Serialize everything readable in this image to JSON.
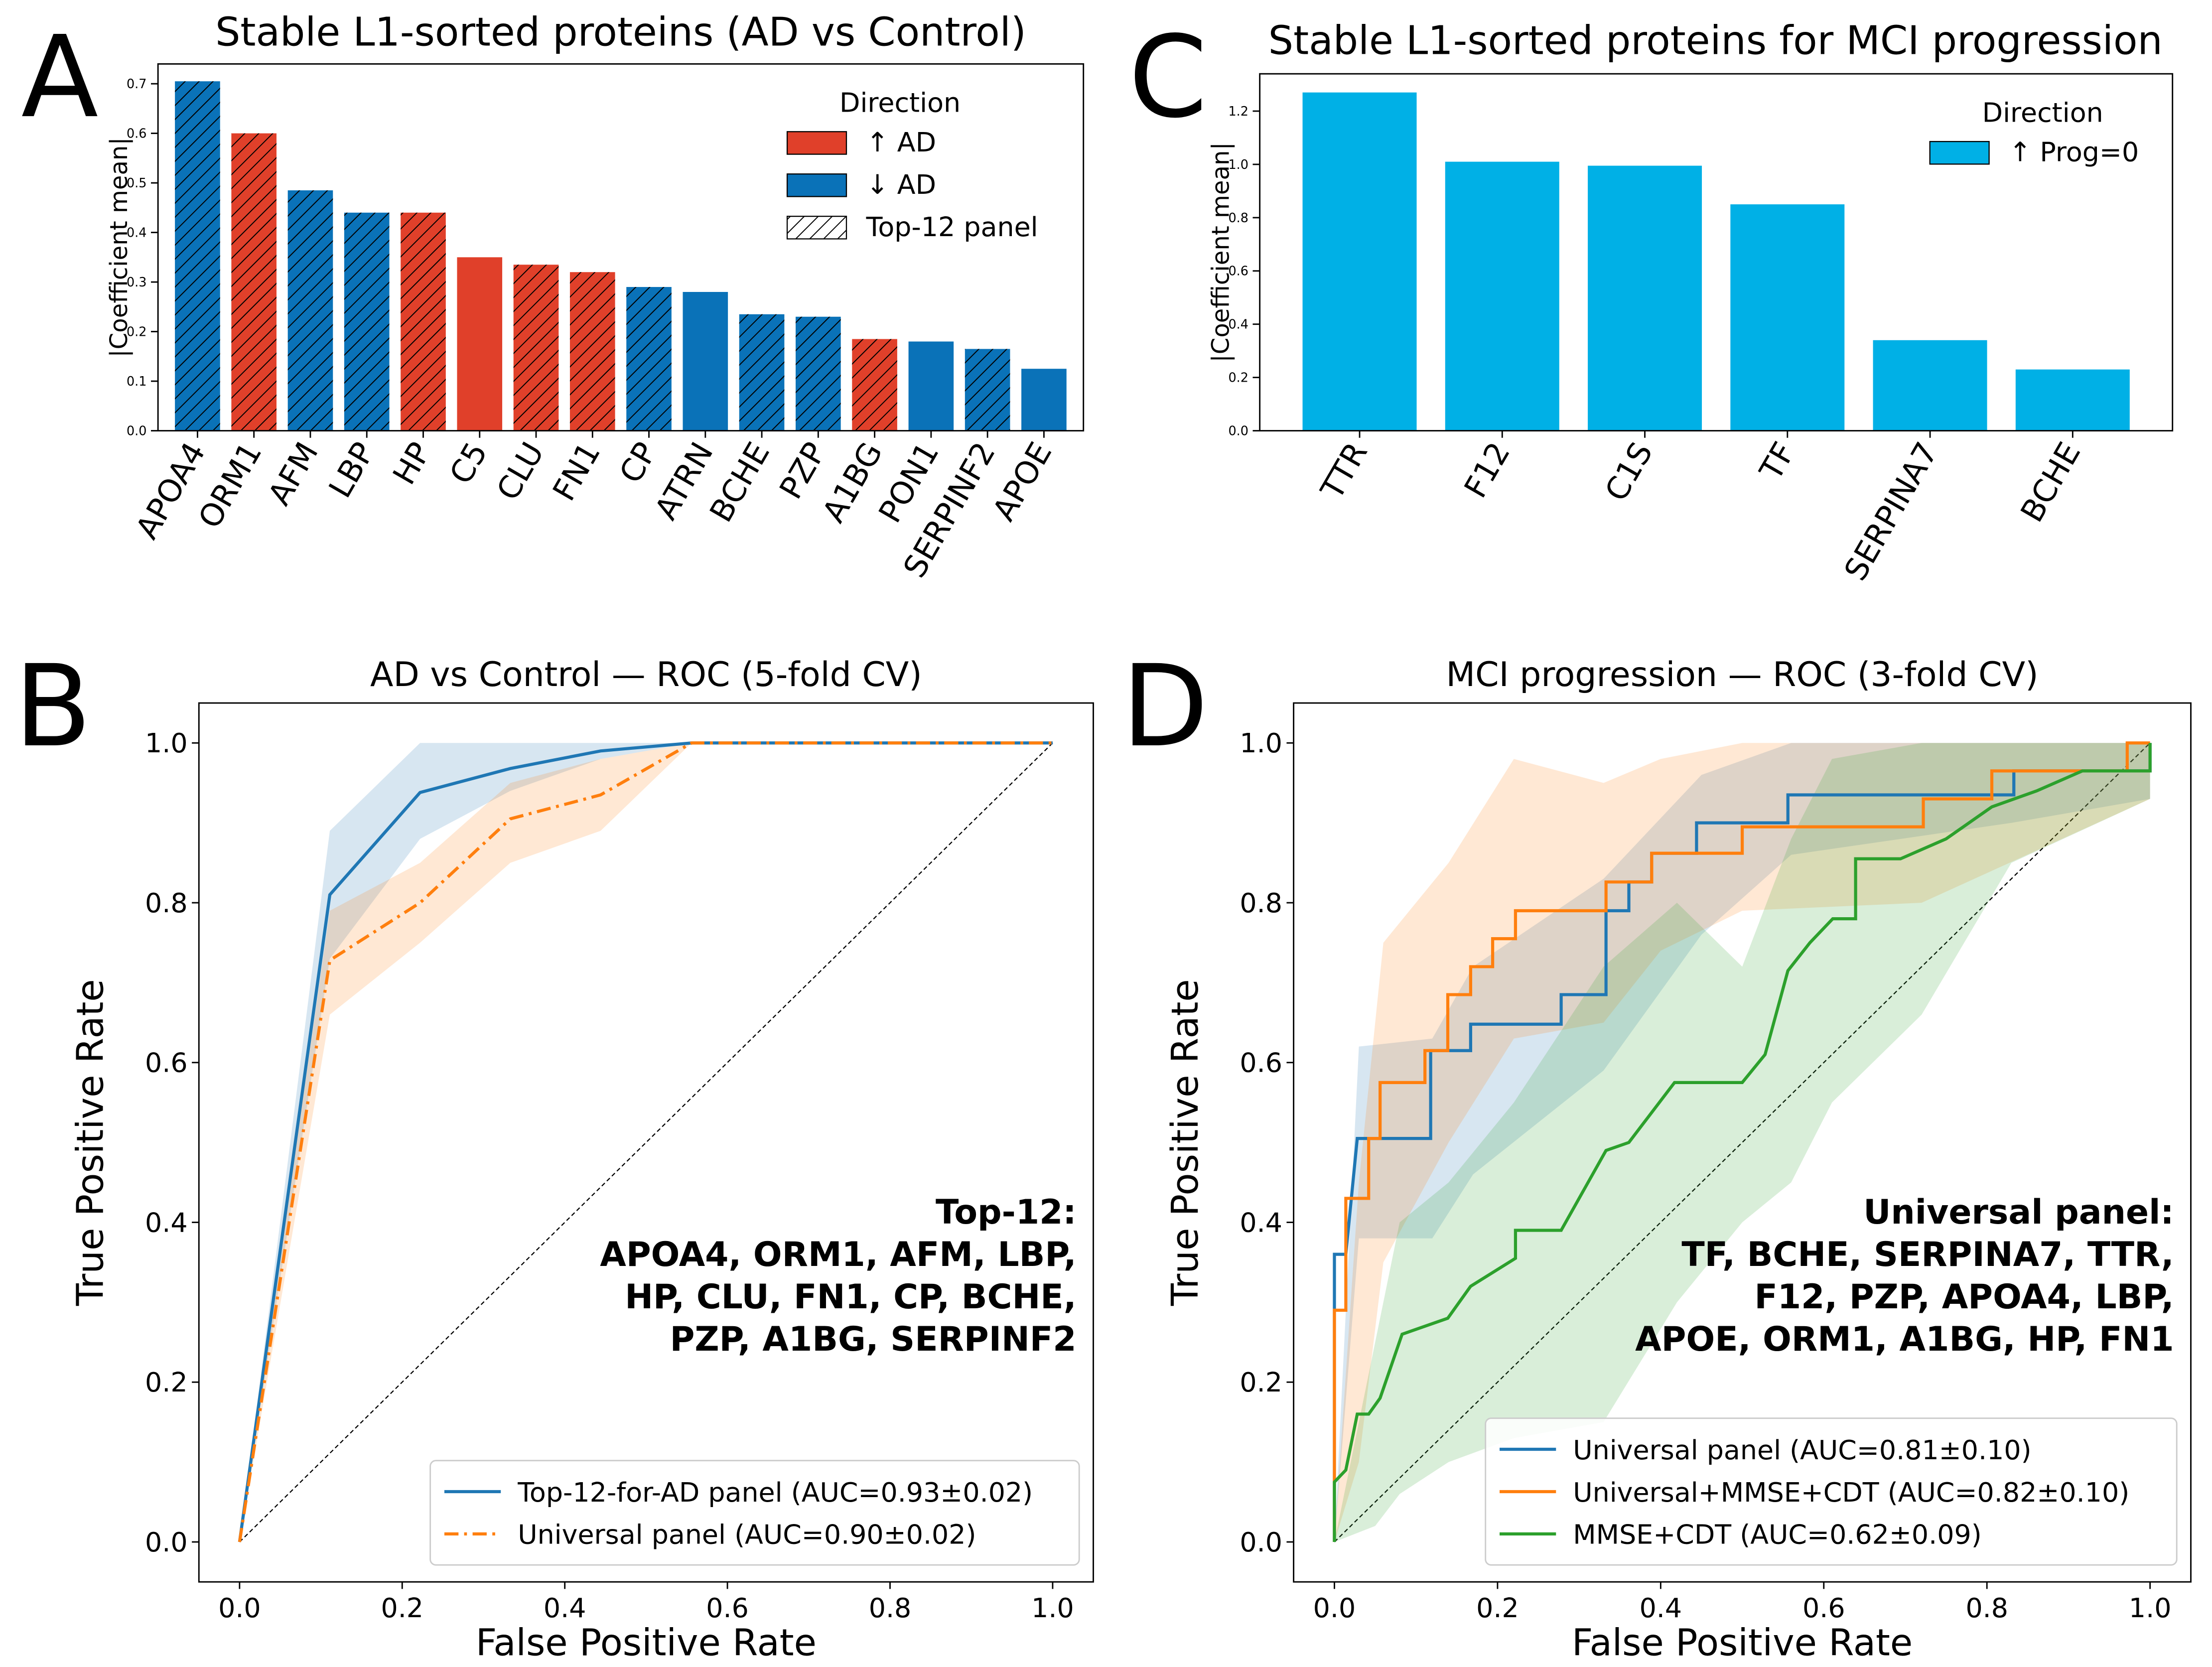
{
  "chart_data": [
    {
      "type": "bar",
      "label": "A",
      "title": "Stable L1-sorted proteins (AD vs Control)",
      "ylabel": "|Coefficient mean|",
      "categories": [
        "APOA4",
        "ORM1",
        "AFM",
        "LBP",
        "HP",
        "C5",
        "CLU",
        "FN1",
        "CP",
        "ATRN",
        "BCHE",
        "PZP",
        "A1BG",
        "PON1",
        "SERPINF2",
        "APOE"
      ],
      "values": [
        0.705,
        0.6,
        0.485,
        0.44,
        0.44,
        0.35,
        0.335,
        0.32,
        0.29,
        0.28,
        0.235,
        0.23,
        0.185,
        0.18,
        0.165,
        0.125
      ],
      "colors": [
        "#0a72b8",
        "#e0402a",
        "#0a72b8",
        "#0a72b8",
        "#e0402a",
        "#e0402a",
        "#e0402a",
        "#e0402a",
        "#0a72b8",
        "#0a72b8",
        "#0a72b8",
        "#0a72b8",
        "#e0402a",
        "#0a72b8",
        "#0a72b8",
        "#0a72b8"
      ],
      "hatch": [
        true,
        true,
        true,
        true,
        true,
        false,
        true,
        true,
        true,
        false,
        true,
        true,
        true,
        false,
        true,
        false
      ],
      "ylim": [
        0,
        0.74
      ],
      "yticks": [
        {
          "value": 0,
          "label": "0.0"
        },
        {
          "value": 0.1,
          "label": "0.1"
        },
        {
          "value": 0.2,
          "label": "0.2"
        },
        {
          "value": 0.3,
          "label": "0.3"
        },
        {
          "value": 0.4,
          "label": "0.4"
        },
        {
          "value": 0.5,
          "label": "0.5"
        },
        {
          "value": 0.6,
          "label": "0.6"
        },
        {
          "value": 0.7,
          "label": "0.7"
        }
      ],
      "legend": {
        "title": "Direction",
        "loc": "upper right",
        "entries": [
          {
            "label": "↑ AD",
            "color": "#e0402a"
          },
          {
            "label": "↓ AD",
            "color": "#0a72b8"
          },
          {
            "label": "Top-12 panel",
            "hatch": true
          }
        ]
      }
    },
    {
      "type": "roc",
      "label": "B",
      "title": "AD vs Control — ROC (5-fold CV)",
      "xlabel": "False Positive Rate",
      "ylabel": "True Positive Rate",
      "xlim": [
        -0.05,
        1.05
      ],
      "ylim": [
        -0.05,
        1.05
      ],
      "xticks": [
        {
          "value": 0,
          "label": "0.0"
        },
        {
          "value": 0.2,
          "label": "0.2"
        },
        {
          "value": 0.4,
          "label": "0.4"
        },
        {
          "value": 0.6,
          "label": "0.6"
        },
        {
          "value": 0.8,
          "label": "0.8"
        },
        {
          "value": 1,
          "label": "1.0"
        }
      ],
      "yticks": [
        {
          "value": 0,
          "label": "0.0"
        },
        {
          "value": 0.2,
          "label": "0.2"
        },
        {
          "value": 0.4,
          "label": "0.4"
        },
        {
          "value": 0.6,
          "label": "0.6"
        },
        {
          "value": 0.8,
          "label": "0.8"
        },
        {
          "value": 1,
          "label": "1.0"
        }
      ],
      "legend": {
        "loc": "lower right"
      },
      "annotation": [
        "Top-12:",
        "APOA4, ORM1, AFM, LBP,",
        "HP, CLU, FN1, CP, BCHE,",
        "PZP, A1BG, SERPINF2"
      ],
      "series": [
        {
          "name": "Top-12-for-AD panel (AUC=0.93±0.02)",
          "color": "#1f77b4",
          "dash": "solid",
          "x": [
            0,
            0.111,
            0.222,
            0.333,
            0.444,
            0.556,
            1
          ],
          "values": [
            0,
            0.81,
            0.938,
            0.968,
            0.99,
            1,
            1
          ],
          "band": {
            "x": [
              0,
              0.111,
              0.222,
              0.333,
              0.444,
              0.556,
              1
            ],
            "lower": [
              0,
              0.73,
              0.88,
              0.94,
              0.98,
              1,
              1
            ],
            "upper": [
              0,
              0.89,
              1,
              1,
              1,
              1,
              1
            ]
          }
        },
        {
          "name": "Universal panel (AUC=0.90±0.02)",
          "color": "#ff7f0e",
          "dash": "dashdot",
          "x": [
            0,
            0.111,
            0.222,
            0.333,
            0.444,
            0.556,
            1
          ],
          "values": [
            0,
            0.728,
            0.8,
            0.905,
            0.935,
            1,
            1
          ],
          "band": {
            "x": [
              0,
              0.111,
              0.222,
              0.333,
              0.444,
              0.556,
              1
            ],
            "lower": [
              0,
              0.66,
              0.75,
              0.85,
              0.89,
              1,
              1
            ],
            "upper": [
              0,
              0.79,
              0.85,
              0.95,
              0.98,
              1,
              1
            ]
          }
        }
      ]
    },
    {
      "type": "bar",
      "label": "C",
      "title": "Stable L1-sorted proteins for MCI progression",
      "ylabel": "|Coefficient mean|",
      "categories": [
        "TTR",
        "F12",
        "C1S",
        "TF",
        "SERPINA7",
        "BCHE"
      ],
      "values": [
        1.27,
        1.01,
        0.995,
        0.85,
        0.34,
        0.23
      ],
      "colors": [
        "#00b0e6",
        "#00b0e6",
        "#00b0e6",
        "#00b0e6",
        "#00b0e6",
        "#00b0e6"
      ],
      "hatch": [
        false,
        false,
        false,
        false,
        false,
        false
      ],
      "ylim": [
        0,
        1.34
      ],
      "yticks": [
        {
          "value": 0,
          "label": "0.0"
        },
        {
          "value": 0.2,
          "label": "0.2"
        },
        {
          "value": 0.4,
          "label": "0.4"
        },
        {
          "value": 0.6,
          "label": "0.6"
        },
        {
          "value": 0.8,
          "label": "0.8"
        },
        {
          "value": 1,
          "label": "1.0"
        },
        {
          "value": 1.2,
          "label": "1.2"
        }
      ],
      "legend": {
        "title": "Direction",
        "loc": "upper right",
        "entries": [
          {
            "label": "↑ Prog=0",
            "color": "#00b0e6"
          }
        ]
      }
    },
    {
      "type": "roc",
      "label": "D",
      "title": "MCI progression — ROC (3-fold CV)",
      "xlabel": "False Positive Rate",
      "ylabel": "True Positive Rate",
      "xlim": [
        -0.05,
        1.05
      ],
      "ylim": [
        -0.05,
        1.05
      ],
      "xticks": [
        {
          "value": 0,
          "label": "0.0"
        },
        {
          "value": 0.2,
          "label": "0.2"
        },
        {
          "value": 0.4,
          "label": "0.4"
        },
        {
          "value": 0.6,
          "label": "0.6"
        },
        {
          "value": 0.8,
          "label": "0.8"
        },
        {
          "value": 1,
          "label": "1.0"
        }
      ],
      "yticks": [
        {
          "value": 0,
          "label": "0.0"
        },
        {
          "value": 0.2,
          "label": "0.2"
        },
        {
          "value": 0.4,
          "label": "0.4"
        },
        {
          "value": 0.6,
          "label": "0.6"
        },
        {
          "value": 0.8,
          "label": "0.8"
        },
        {
          "value": 1,
          "label": "1.0"
        }
      ],
      "legend": {
        "loc": "lower right"
      },
      "annotation": [
        "Universal panel:",
        "TF, BCHE, SERPINA7, TTR,",
        "F12, PZP, APOA4, LBP,",
        "APOE, ORM1, A1BG, HP, FN1"
      ],
      "series": [
        {
          "name": "Universal panel (AUC=0.81±0.10)",
          "color": "#1f77b4",
          "dash": "solid",
          "x": [
            0,
            0,
            0.014,
            0.028,
            0.118,
            0.118,
            0.167,
            0.167,
            0.278,
            0.278,
            0.333,
            0.333,
            0.361,
            0.361,
            0.389,
            0.389,
            0.444,
            0.444,
            0.556,
            0.556,
            0.833,
            0.833,
            1,
            1
          ],
          "values": [
            0,
            0.36,
            0.36,
            0.505,
            0.505,
            0.615,
            0.615,
            0.648,
            0.648,
            0.685,
            0.685,
            0.79,
            0.79,
            0.826,
            0.826,
            0.862,
            0.862,
            0.9,
            0.9,
            0.935,
            0.935,
            0.965,
            0.965,
            1
          ],
          "band": {
            "x": [
              0,
              0.03,
              0.12,
              0.17,
              0.33,
              0.45,
              0.56,
              0.83,
              1
            ],
            "lower": [
              0,
              0.38,
              0.38,
              0.46,
              0.59,
              0.76,
              0.86,
              0.9,
              0.93
            ],
            "upper": [
              0,
              0.62,
              0.63,
              0.72,
              0.83,
              0.96,
              1,
              1,
              1
            ]
          }
        },
        {
          "name": "Universal+MMSE+CDT (AUC=0.82±0.10)",
          "color": "#ff7f0e",
          "dash": "solid",
          "x": [
            0,
            0,
            0.014,
            0.014,
            0.042,
            0.042,
            0.056,
            0.056,
            0.111,
            0.111,
            0.139,
            0.139,
            0.167,
            0.167,
            0.194,
            0.194,
            0.222,
            0.222,
            0.333,
            0.333,
            0.389,
            0.389,
            0.5,
            0.5,
            0.722,
            0.722,
            0.806,
            0.806,
            0.972,
            0.972,
            1
          ],
          "values": [
            0,
            0.29,
            0.29,
            0.43,
            0.43,
            0.505,
            0.505,
            0.575,
            0.575,
            0.615,
            0.615,
            0.685,
            0.685,
            0.72,
            0.72,
            0.755,
            0.755,
            0.79,
            0.79,
            0.826,
            0.826,
            0.862,
            0.862,
            0.895,
            0.895,
            0.93,
            0.93,
            0.965,
            0.965,
            1,
            1
          ],
          "band": {
            "x": [
              0,
              0.03,
              0.06,
              0.14,
              0.22,
              0.33,
              0.4,
              0.5,
              0.72,
              1
            ],
            "lower": [
              0,
              0.1,
              0.35,
              0.5,
              0.63,
              0.65,
              0.74,
              0.79,
              0.8,
              0.93
            ],
            "upper": [
              0,
              0.45,
              0.75,
              0.85,
              0.98,
              0.95,
              0.98,
              1,
              1,
              1
            ]
          }
        },
        {
          "name": "MMSE+CDT (AUC=0.62±0.09)",
          "color": "#2ca02c",
          "dash": "solid",
          "x": [
            0,
            0,
            0.014,
            0.028,
            0.042,
            0.056,
            0.083,
            0.139,
            0.167,
            0.222,
            0.222,
            0.278,
            0.333,
            0.361,
            0.417,
            0.5,
            0.528,
            0.556,
            0.583,
            0.611,
            0.639,
            0.639,
            0.694,
            0.75,
            0.806,
            0.861,
            0.917,
            1,
            1
          ],
          "values": [
            0,
            0.075,
            0.09,
            0.16,
            0.16,
            0.18,
            0.26,
            0.28,
            0.32,
            0.355,
            0.39,
            0.39,
            0.49,
            0.5,
            0.575,
            0.575,
            0.61,
            0.715,
            0.75,
            0.78,
            0.78,
            0.855,
            0.855,
            0.88,
            0.92,
            0.94,
            0.965,
            0.965,
            1
          ],
          "band": {
            "x": [
              0,
              0.05,
              0.08,
              0.14,
              0.22,
              0.33,
              0.42,
              0.5,
              0.56,
              0.61,
              0.72,
              0.83,
              1
            ],
            "lower": [
              0,
              0.02,
              0.06,
              0.1,
              0.13,
              0.15,
              0.3,
              0.4,
              0.45,
              0.55,
              0.66,
              0.85,
              0.93
            ],
            "upper": [
              0,
              0.25,
              0.4,
              0.45,
              0.55,
              0.72,
              0.8,
              0.72,
              0.88,
              0.98,
              1,
              1,
              1
            ]
          }
        }
      ]
    }
  ]
}
